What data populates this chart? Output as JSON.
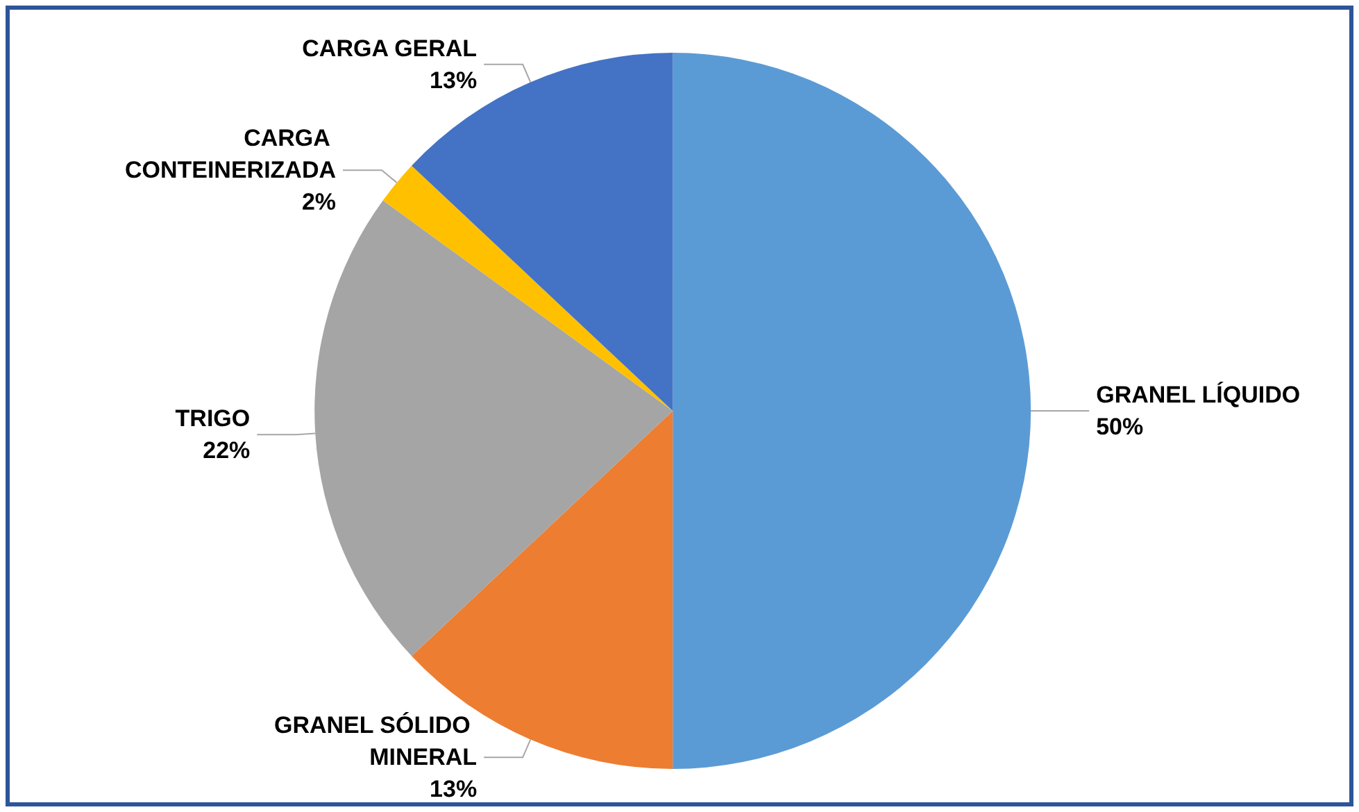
{
  "chart_data": {
    "type": "pie",
    "categories": [
      "GRANEL LÍQUIDO",
      "GRANEL SÓLIDO MINERAL",
      "TRIGO",
      "CARGA CONTEINERIZADA",
      "CARGA GERAL"
    ],
    "values": [
      50,
      13,
      22,
      2,
      13
    ],
    "value_labels": [
      "50%",
      "13%",
      "22%",
      "2%",
      "13%"
    ],
    "colors": [
      "#5b9bd5",
      "#ed7d31",
      "#a5a5a5",
      "#ffc000",
      "#4472c4"
    ],
    "legend": false
  }
}
